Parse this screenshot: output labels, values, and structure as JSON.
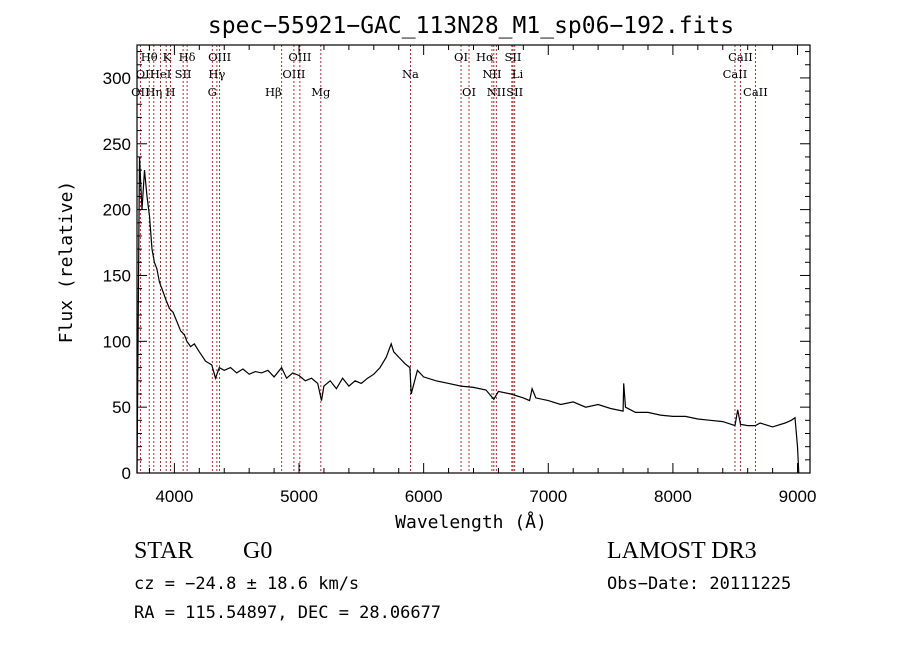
{
  "chart_data": {
    "type": "line",
    "title": "spec−55921−GAC_113N28_M1_sp06−192.fits",
    "xlabel": "Wavelength (Å)",
    "ylabel": "Flux (relative)",
    "xlim": [
      3700,
      9100
    ],
    "ylim": [
      0,
      325
    ],
    "x_ticks": [
      4000,
      5000,
      6000,
      7000,
      8000,
      9000
    ],
    "y_ticks": [
      0,
      50,
      100,
      150,
      200,
      250,
      300
    ],
    "grid": false,
    "series": [
      {
        "name": "spectrum",
        "x": [
          3700,
          3720,
          3740,
          3760,
          3780,
          3800,
          3820,
          3840,
          3860,
          3880,
          3900,
          3930,
          3960,
          3990,
          4020,
          4050,
          4080,
          4100,
          4130,
          4160,
          4200,
          4250,
          4300,
          4330,
          4360,
          4400,
          4450,
          4500,
          4550,
          4600,
          4650,
          4700,
          4750,
          4800,
          4860,
          4900,
          4950,
          5000,
          5050,
          5100,
          5150,
          5180,
          5200,
          5250,
          5300,
          5350,
          5400,
          5450,
          5500,
          5550,
          5600,
          5650,
          5700,
          5740,
          5760,
          5800,
          5850,
          5890,
          5900,
          5950,
          6000,
          6100,
          6200,
          6300,
          6400,
          6500,
          6563,
          6600,
          6700,
          6800,
          6850,
          6870,
          6900,
          7000,
          7100,
          7200,
          7300,
          7400,
          7500,
          7600,
          7605,
          7620,
          7700,
          7800,
          7900,
          8000,
          8100,
          8200,
          8300,
          8400,
          8498,
          8520,
          8542,
          8600,
          8662,
          8700,
          8800,
          8900,
          8950,
          8980,
          9000,
          9010
        ],
        "values": [
          0,
          240,
          200,
          230,
          210,
          195,
          170,
          160,
          155,
          145,
          140,
          132,
          125,
          122,
          115,
          108,
          105,
          100,
          96,
          98,
          92,
          85,
          82,
          72,
          80,
          78,
          80,
          76,
          79,
          75,
          77,
          76,
          78,
          73,
          80,
          72,
          76,
          74,
          70,
          72,
          68,
          55,
          66,
          70,
          64,
          72,
          66,
          70,
          68,
          72,
          75,
          80,
          88,
          98,
          92,
          88,
          83,
          80,
          60,
          78,
          73,
          70,
          68,
          66,
          65,
          63,
          56,
          62,
          60,
          57,
          55,
          64,
          57,
          55,
          52,
          54,
          50,
          52,
          49,
          47,
          68,
          50,
          46,
          46,
          44,
          43,
          43,
          41,
          40,
          39,
          36,
          48,
          37,
          36,
          36,
          38,
          35,
          38,
          40,
          42,
          20,
          0
        ]
      }
    ],
    "lines": [
      {
        "name": "O II",
        "wavelength": 3727
      },
      {
        "name": "Hθ",
        "wavelength": 3798
      },
      {
        "name": "Hη",
        "wavelength": 3835
      },
      {
        "name": "He I",
        "wavelength": 3889
      },
      {
        "name": "K",
        "wavelength": 3934
      },
      {
        "name": "H",
        "wavelength": 3969
      },
      {
        "name": "S II",
        "wavelength": 4070
      },
      {
        "name": "Hδ",
        "wavelength": 4102
      },
      {
        "name": "G",
        "wavelength": 4304
      },
      {
        "name": "Hγ",
        "wavelength": 4341
      },
      {
        "name": "O III",
        "wavelength": 4363
      },
      {
        "name": "Hβ",
        "wavelength": 4861
      },
      {
        "name": "O III",
        "wavelength": 4959
      },
      {
        "name": "O III",
        "wavelength": 5007
      },
      {
        "name": "Mg",
        "wavelength": 5175
      },
      {
        "name": "Na",
        "wavelength": 5894
      },
      {
        "name": "O I",
        "wavelength": 6300
      },
      {
        "name": "O I",
        "wavelength": 6364
      },
      {
        "name": "N II",
        "wavelength": 6548
      },
      {
        "name": "Hα",
        "wavelength": 6563
      },
      {
        "name": "N II",
        "wavelength": 6583
      },
      {
        "name": "Li",
        "wavelength": 6708
      },
      {
        "name": "S II",
        "wavelength": 6717
      },
      {
        "name": "S II",
        "wavelength": 6731
      },
      {
        "name": "Ca II",
        "wavelength": 8498
      },
      {
        "name": "Ca II",
        "wavelength": 8542
      },
      {
        "name": "Ca II",
        "wavelength": 8662
      }
    ],
    "line_labels": [
      {
        "text": "Hθ",
        "wavelength": 3798,
        "row": 1,
        "anchor": "middle"
      },
      {
        "text": "K",
        "wavelength": 3940,
        "row": 1,
        "anchor": "middle"
      },
      {
        "text": "Hδ",
        "wavelength": 4102,
        "row": 1,
        "anchor": "middle"
      },
      {
        "text": "OIII",
        "wavelength": 4363,
        "row": 1,
        "anchor": "middle"
      },
      {
        "text": "OIII",
        "wavelength": 5007,
        "row": 1,
        "anchor": "middle"
      },
      {
        "text": "OI",
        "wavelength": 6300,
        "row": 1,
        "anchor": "middle"
      },
      {
        "text": "Hα",
        "wavelength": 6563,
        "row": 1,
        "anchor": "end"
      },
      {
        "text": "SII",
        "wavelength": 6717,
        "row": 1,
        "anchor": "middle"
      },
      {
        "text": "CaII",
        "wavelength": 8542,
        "row": 1,
        "anchor": "middle"
      },
      {
        "text": "OII",
        "wavelength": 3690,
        "row": 2,
        "anchor": "start"
      },
      {
        "text": "HeI",
        "wavelength": 3889,
        "row": 2,
        "anchor": "middle"
      },
      {
        "text": "SII",
        "wavelength": 4070,
        "row": 2,
        "anchor": "middle"
      },
      {
        "text": "Hγ",
        "wavelength": 4341,
        "row": 2,
        "anchor": "middle"
      },
      {
        "text": "OIII",
        "wavelength": 4959,
        "row": 2,
        "anchor": "middle"
      },
      {
        "text": "Na",
        "wavelength": 5894,
        "row": 2,
        "anchor": "middle"
      },
      {
        "text": "NII",
        "wavelength": 6548,
        "row": 2,
        "anchor": "middle"
      },
      {
        "text": "Li",
        "wavelength": 6708,
        "row": 2,
        "anchor": "start"
      },
      {
        "text": "CaII",
        "wavelength": 8498,
        "row": 2,
        "anchor": "middle"
      },
      {
        "text": "OII",
        "wavelength": 3727,
        "row": 3,
        "anchor": "middle"
      },
      {
        "text": "Hη",
        "wavelength": 3835,
        "row": 3,
        "anchor": "middle"
      },
      {
        "text": "H",
        "wavelength": 3969,
        "row": 3,
        "anchor": "middle"
      },
      {
        "text": "G",
        "wavelength": 4304,
        "row": 3,
        "anchor": "middle"
      },
      {
        "text": "Hβ",
        "wavelength": 4861,
        "row": 3,
        "anchor": "end"
      },
      {
        "text": "Mg",
        "wavelength": 5175,
        "row": 3,
        "anchor": "middle"
      },
      {
        "text": "OI",
        "wavelength": 6364,
        "row": 3,
        "anchor": "middle"
      },
      {
        "text": "NII",
        "wavelength": 6583,
        "row": 3,
        "anchor": "middle"
      },
      {
        "text": "SII",
        "wavelength": 6731,
        "row": 3,
        "anchor": "middle"
      },
      {
        "text": "CaII",
        "wavelength": 8662,
        "row": 3,
        "anchor": "middle"
      }
    ],
    "line_color": "#8b0000",
    "spectrum_color": "#000000"
  },
  "info": {
    "classification": "STAR",
    "subclass": "G0",
    "survey": "LAMOST DR3",
    "redshift": "cz = −24.8 ± 18.6 km/s",
    "obs_date": "Obs−Date: 20111225",
    "coords": "RA = 115.54897, DEC =  28.06677"
  }
}
